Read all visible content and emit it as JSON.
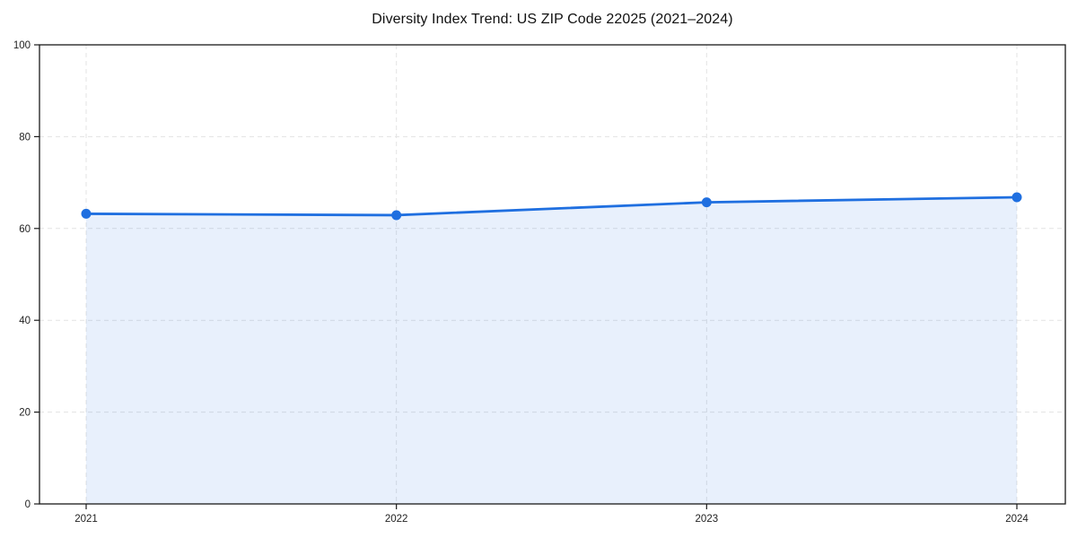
{
  "page": {
    "background": "#ffffff"
  },
  "chart_data": {
    "type": "area",
    "title": "Diversity Index Trend: US ZIP Code 22025 (2021–2024)",
    "categories": [
      "2021",
      "2022",
      "2023",
      "2024"
    ],
    "series": [
      {
        "name": "Diversity Index",
        "values": [
          63.2,
          62.9,
          65.7,
          66.8
        ]
      }
    ],
    "xlabel": "",
    "ylabel": "",
    "ylim": [
      0,
      100
    ],
    "yticks": [
      0,
      20,
      40,
      60,
      80,
      100
    ],
    "grid": true,
    "grid_style": "dashed",
    "legend": false,
    "marker": "circle",
    "colors": {
      "line": "#1f6fe0",
      "fill": "#e9f1fc",
      "grid": "#e3e3e3",
      "axis": "#1a1a1a",
      "tick_text": "#222222",
      "title_text": "#111111",
      "background": "#ffffff"
    }
  }
}
